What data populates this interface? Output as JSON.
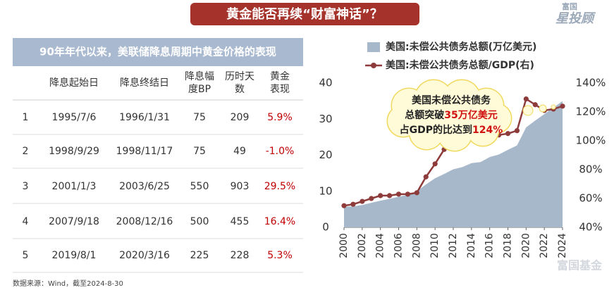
{
  "title": "黄金能否再续“财富神话”？",
  "logo": {
    "small": "富国",
    "large": "星投顾"
  },
  "table": {
    "title": "90年年代以来，美联储降息周期中黄金价格的表现",
    "headers": [
      [
        "降息起始日"
      ],
      [
        "降息终结日"
      ],
      [
        "降息幅",
        "度BP"
      ],
      [
        "历时天",
        "数"
      ],
      [
        "黄金",
        "表现"
      ]
    ],
    "rows": [
      [
        1,
        "1995/7/6",
        "1996/1/31",
        75,
        209,
        "5.9%"
      ],
      [
        2,
        "1998/9/29",
        "1998/11/17",
        75,
        49,
        "-1.0%"
      ],
      [
        3,
        "2001/1/3",
        "2003/6/25",
        550,
        903,
        "29.5%"
      ],
      [
        4,
        "2007/9/18",
        "2008/12/16",
        500,
        455,
        "16.4%"
      ],
      [
        5,
        "2019/8/1",
        "2020/3/16",
        225,
        228,
        "5.3%"
      ]
    ]
  },
  "source": "数据来源：Wind，截至2024-8-30",
  "watermark": "富国基金",
  "chart_data": {
    "type": "combo",
    "x": [
      2000,
      2001,
      2002,
      2003,
      2004,
      2005,
      2006,
      2007,
      2008,
      2009,
      2010,
      2011,
      2012,
      2013,
      2014,
      2015,
      2016,
      2017,
      2018,
      2019,
      2020,
      2021,
      2022,
      2023,
      2024
    ],
    "series": [
      {
        "name": "美国:未偿公共债务总额(万亿美元)",
        "type": "area",
        "color": "#a7b8cb",
        "values": [
          5.7,
          5.8,
          6.2,
          6.8,
          7.4,
          7.9,
          8.5,
          9.0,
          10.0,
          11.9,
          13.6,
          14.8,
          16.1,
          16.7,
          17.8,
          18.1,
          19.5,
          20.2,
          21.5,
          22.7,
          27.7,
          29.6,
          31.4,
          33.2,
          35.0
        ]
      },
      {
        "name": "美国:未偿公共债务总额/GDP(右)",
        "type": "line",
        "axis": "y2",
        "color": "#8e3b3b",
        "values": [
          55,
          56,
          58,
          60,
          62,
          62,
          63,
          63,
          64,
          75,
          84,
          94,
          100,
          100,
          101,
          101,
          104,
          104,
          105,
          107,
          129,
          125,
          121,
          122,
          124
        ]
      }
    ],
    "xlim": [
      2000,
      2024
    ],
    "xticks": [
      2000,
      2002,
      2004,
      2006,
      2008,
      2010,
      2012,
      2014,
      2016,
      2018,
      2020,
      2022,
      2024
    ],
    "ylim": [
      0,
      40
    ],
    "yticks": [
      0,
      10,
      20,
      30,
      40
    ],
    "y2lim": [
      40,
      140
    ],
    "y2ticks": [
      {
        "value": 40,
        "label": "40%"
      },
      {
        "value": 60,
        "label": "60%"
      },
      {
        "value": 80,
        "label": "80%"
      },
      {
        "value": 100,
        "label": "100%"
      },
      {
        "value": 120,
        "label": "120%"
      },
      {
        "value": 140,
        "label": "140%"
      }
    ],
    "annotation": [
      [
        "美国未偿公共债务"
      ],
      [
        "总额突破",
        "35万亿美元"
      ],
      [
        "占GDP的比达到",
        "124%"
      ]
    ]
  }
}
